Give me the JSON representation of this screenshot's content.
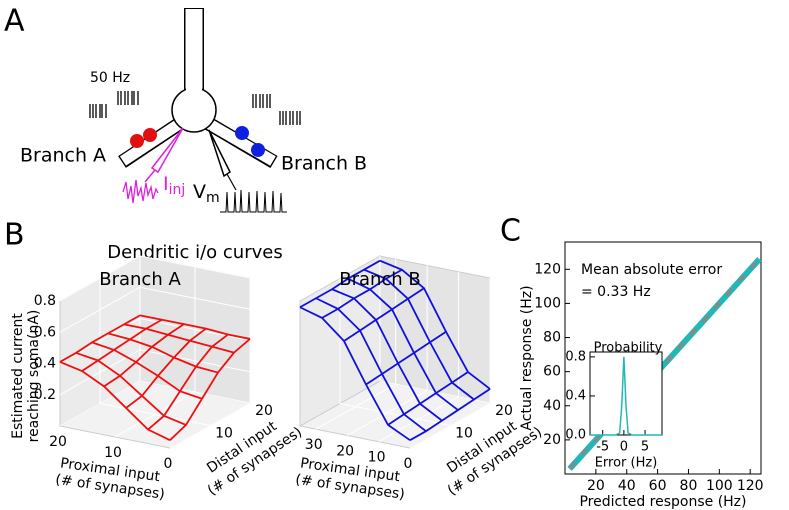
{
  "panel_labels": {
    "a": "A",
    "b": "B",
    "c": "C"
  },
  "diagram": {
    "rate": "50 Hz",
    "branch_a": "Branch A",
    "branch_b": "Branch B",
    "current": "I",
    "current_sub": "inj",
    "voltage": "V",
    "voltage_sub": "m"
  },
  "surfaces": {
    "title": "Dendritic i/o curves",
    "zlabel": [
      "Estimated current",
      "reaching soma(nA)"
    ],
    "xlabel": [
      "Proximal input",
      "(# of synapses)"
    ],
    "ylabel": [
      "Distal input",
      "(# of synapses)"
    ],
    "plots": [
      {
        "title": "Branch A",
        "color": "#ee1111",
        "proximal": [
          0,
          4,
          8,
          12,
          16,
          20
        ],
        "distal": [
          0,
          4,
          8,
          12,
          16,
          20
        ],
        "z": [
          [
            0.05,
            0.09,
            0.2,
            0.31,
            0.38,
            0.41
          ],
          [
            0.09,
            0.12,
            0.22,
            0.32,
            0.39,
            0.41
          ],
          [
            0.2,
            0.22,
            0.29,
            0.35,
            0.4,
            0.42
          ],
          [
            0.31,
            0.32,
            0.35,
            0.39,
            0.41,
            0.42
          ],
          [
            0.38,
            0.39,
            0.4,
            0.41,
            0.42,
            0.42
          ],
          [
            0.41,
            0.41,
            0.42,
            0.42,
            0.42,
            0.42
          ]
        ],
        "xlim": [
          0,
          20
        ],
        "xticks": [
          0,
          10,
          20
        ],
        "ylim": [
          0,
          20
        ],
        "yticks": [
          10,
          20
        ],
        "zlim": [
          0,
          0.8
        ],
        "zticks": [
          0.2,
          0.4,
          0.6,
          0.8
        ]
      },
      {
        "title": "Branch B",
        "color": "#1111dd",
        "proximal": [
          0,
          7,
          14,
          21,
          28,
          35
        ],
        "distal": [
          0,
          4,
          8,
          12,
          16,
          20
        ],
        "z": [
          [
            0.05,
            0.05,
            0.06,
            0.07,
            0.08,
            0.09
          ],
          [
            0.12,
            0.13,
            0.14,
            0.15,
            0.16,
            0.17
          ],
          [
            0.35,
            0.36,
            0.37,
            0.38,
            0.39,
            0.4
          ],
          [
            0.6,
            0.61,
            0.62,
            0.63,
            0.64,
            0.65
          ],
          [
            0.72,
            0.72,
            0.73,
            0.73,
            0.74,
            0.74
          ],
          [
            0.76,
            0.76,
            0.76,
            0.77,
            0.77,
            0.77
          ]
        ],
        "xlim": [
          0,
          35
        ],
        "xticks": [
          0,
          10,
          20,
          30
        ],
        "ylim": [
          0,
          20
        ],
        "yticks": [
          10,
          20
        ],
        "zlim": [
          0,
          0.8
        ],
        "zticks": []
      }
    ]
  },
  "chart_data": [
    {
      "type": "line",
      "xlabel": "Predicted response (Hz)",
      "ylabel": "Actual response (Hz)",
      "annotation": [
        "Mean absolute error",
        "= 0.33 Hz"
      ],
      "x": [
        3,
        10,
        20,
        30,
        40,
        50,
        60,
        70,
        80,
        90,
        100,
        110,
        120,
        126
      ],
      "series": [
        {
          "color": "#22b8b8",
          "values": [
            3,
            10,
            20,
            30,
            40,
            50,
            60,
            70,
            80,
            90,
            100,
            110,
            120,
            126
          ]
        },
        {
          "color": "#888888",
          "values": [
            3.2,
            10.3,
            19.8,
            30.4,
            39.7,
            50.2,
            60.3,
            69.8,
            80.4,
            89.7,
            100.3,
            110.2,
            119.7,
            126.2
          ]
        }
      ],
      "xlim": [
        0,
        127
      ],
      "ylim": [
        0,
        136
      ],
      "xticks": [
        20,
        40,
        60,
        80,
        100,
        120
      ],
      "yticks": [
        20,
        40,
        60,
        80,
        100,
        120
      ]
    },
    {
      "type": "line",
      "ylabel": "Probability",
      "xlabel": "Error (Hz)",
      "x": [
        -8,
        -2,
        -1,
        -0.5,
        0,
        0.5,
        1,
        2,
        9
      ],
      "series": [
        {
          "color": "#22b8b8",
          "values": [
            0,
            0,
            0.02,
            0.3,
            0.8,
            0.3,
            0.02,
            0,
            0
          ]
        }
      ],
      "xlim": [
        -8,
        9
      ],
      "ylim": [
        0,
        0.85
      ],
      "xticks": [
        -5,
        0,
        5
      ],
      "yticks": [
        {
          "value": 0,
          "label": "0.0"
        },
        0.4,
        0.8
      ]
    }
  ]
}
